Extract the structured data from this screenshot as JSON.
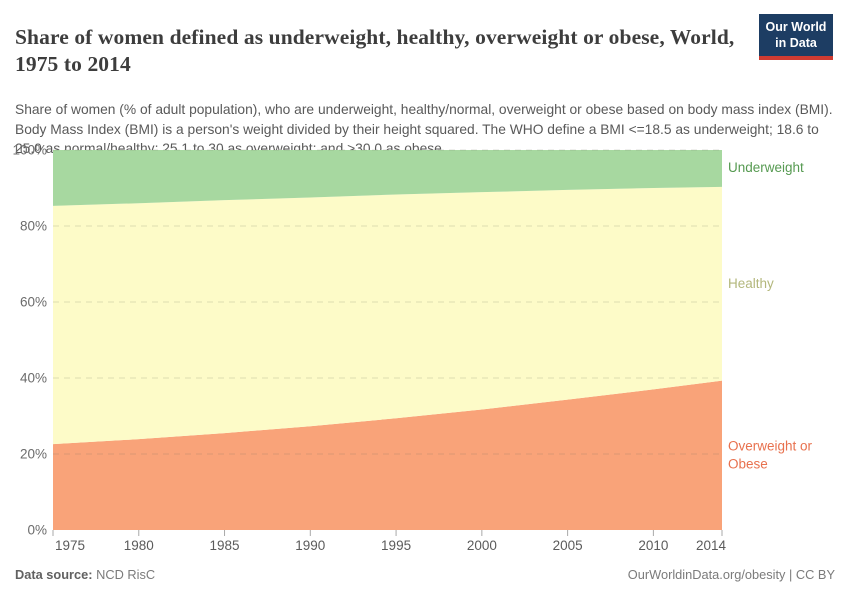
{
  "header": {
    "title": "Share of women defined as underweight, healthy, overweight or obese, World, 1975 to 2014",
    "logo": {
      "line1": "Our World",
      "line2": "in Data",
      "bg_color": "#1d3d63",
      "accent_color": "#cf3b31"
    },
    "subtitle": "Share of women (% of adult population), who are underweight, healthy/normal, overweight or obese based on body mass index (BMI). Body Mass Index (BMI) is a person's weight divided by their height squared. The WHO define a BMI <=18.5 as underweight; 18.6 to 25.0 as normal/healthy; 25.1 to 30 as overweight; and >30.0 as obese."
  },
  "chart_data": {
    "type": "area",
    "stacked": true,
    "title": "Share of women defined as underweight, healthy, overweight or obese, World, 1975 to 2014",
    "x": [
      1975,
      1980,
      1985,
      1990,
      1995,
      2000,
      2005,
      2010,
      2014
    ],
    "series": [
      {
        "name": "Overweight or Obese",
        "area_color": "#f9a379",
        "label_color": "#e8714e",
        "values": [
          22.6,
          23.9,
          25.5,
          27.3,
          29.4,
          31.7,
          34.3,
          37.0,
          39.3
        ]
      },
      {
        "name": "Healthy",
        "area_color": "#fdfbc8",
        "label_color": "#b3b77c",
        "values": [
          62.7,
          62.1,
          61.3,
          60.2,
          58.9,
          57.2,
          55.2,
          53.0,
          51.0
        ]
      },
      {
        "name": "Underweight",
        "area_color": "#a7d8a0",
        "label_color": "#569a51",
        "values": [
          14.7,
          14.0,
          13.2,
          12.5,
          11.7,
          11.1,
          10.5,
          10.0,
          9.7
        ]
      }
    ],
    "ylim": [
      0,
      100
    ],
    "yticks": [
      {
        "value": 0,
        "label": "0%"
      },
      {
        "value": 20,
        "label": "20%"
      },
      {
        "value": 40,
        "label": "40%"
      },
      {
        "value": 60,
        "label": "60%"
      },
      {
        "value": 80,
        "label": "80%"
      },
      {
        "value": 100,
        "label": "100%"
      }
    ],
    "xticks": [
      {
        "value": 1975,
        "label": "1975"
      },
      {
        "value": 1980,
        "label": "1980"
      },
      {
        "value": 1985,
        "label": "1985"
      },
      {
        "value": 1990,
        "label": "1990"
      },
      {
        "value": 1995,
        "label": "1995"
      },
      {
        "value": 2000,
        "label": "2000"
      },
      {
        "value": 2005,
        "label": "2005"
      },
      {
        "value": 2010,
        "label": "2010"
      },
      {
        "value": 2014,
        "label": "2014"
      }
    ],
    "grid": "dashed",
    "legend_position": "right-of-plot",
    "xlabel": "",
    "ylabel": ""
  },
  "footer": {
    "datasource_label": "Data source:",
    "datasource_value": " NCD RisC",
    "attribution": "OurWorldinData.org/obesity | CC BY"
  }
}
